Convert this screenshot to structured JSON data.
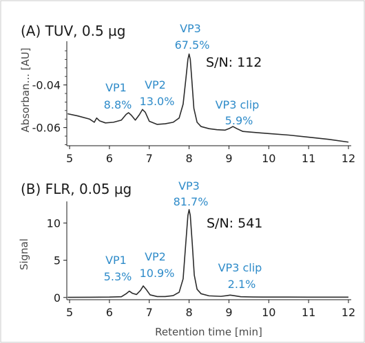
{
  "chart_data": [
    {
      "type": "line",
      "panel": "A",
      "title": "(A) TUV, 0.5 µg",
      "xlabel": "",
      "ylabel": "Absorban... [AU]",
      "xlim": [
        4.93,
        12.07
      ],
      "ylim": [
        -0.0685,
        -0.0195
      ],
      "x_ticks": [
        5,
        6,
        7,
        8,
        9,
        10,
        11,
        12
      ],
      "y_ticks": [
        -0.04,
        -0.06
      ],
      "y_tick_labels": [
        "-0.04",
        "-0.06"
      ],
      "x": [
        4.95,
        5.2,
        5.5,
        5.62,
        5.68,
        5.75,
        5.9,
        6.1,
        6.3,
        6.42,
        6.48,
        6.55,
        6.65,
        6.75,
        6.83,
        6.9,
        7.0,
        7.2,
        7.4,
        7.6,
        7.75,
        7.85,
        7.92,
        7.97,
        8.0,
        8.03,
        8.07,
        8.12,
        8.2,
        8.3,
        8.5,
        8.7,
        8.9,
        9.0,
        9.1,
        9.2,
        9.35,
        9.6,
        10.0,
        10.5,
        11.0,
        11.5,
        12.0
      ],
      "series": [
        {
          "values": [
            -0.0535,
            -0.0545,
            -0.056,
            -0.0575,
            -0.0555,
            -0.0568,
            -0.0578,
            -0.0575,
            -0.0565,
            -0.0538,
            -0.053,
            -0.0542,
            -0.0565,
            -0.054,
            -0.0515,
            -0.0528,
            -0.057,
            -0.0585,
            -0.0582,
            -0.0575,
            -0.0555,
            -0.049,
            -0.037,
            -0.028,
            -0.0255,
            -0.028,
            -0.038,
            -0.051,
            -0.0575,
            -0.0595,
            -0.0605,
            -0.061,
            -0.0612,
            -0.0605,
            -0.0595,
            -0.0605,
            -0.0618,
            -0.0622,
            -0.0628,
            -0.0635,
            -0.0645,
            -0.0655,
            -0.0668
          ]
        }
      ],
      "annotations": [
        {
          "lines": [
            "VP1",
            "8.8%"
          ],
          "color": "#2E8BC9"
        },
        {
          "lines": [
            "VP2",
            "13.0%"
          ],
          "color": "#2E8BC9"
        },
        {
          "lines": [
            "VP3",
            "67.5%"
          ],
          "color": "#2E8BC9"
        },
        {
          "lines": [
            "VP3 clip",
            "5.9%"
          ],
          "color": "#2E8BC9"
        },
        {
          "lines": [
            "S/N: 112"
          ],
          "color": "#111111"
        }
      ]
    },
    {
      "type": "line",
      "panel": "B",
      "title": "(B) FLR, 0.05 µg",
      "xlabel": "Retention time [min]",
      "ylabel": "Signal",
      "xlim": [
        4.93,
        12.07
      ],
      "ylim": [
        -0.3,
        12.9
      ],
      "x_ticks": [
        5,
        6,
        7,
        8,
        9,
        10,
        11,
        12
      ],
      "y_ticks": [
        0,
        5,
        10
      ],
      "y_tick_labels": [
        "0",
        "5",
        "10"
      ],
      "x": [
        4.95,
        5.5,
        6.0,
        6.3,
        6.42,
        6.5,
        6.58,
        6.68,
        6.78,
        6.85,
        6.92,
        7.02,
        7.2,
        7.4,
        7.6,
        7.75,
        7.85,
        7.92,
        7.97,
        8.0,
        8.03,
        8.08,
        8.13,
        8.2,
        8.3,
        8.5,
        8.8,
        8.95,
        9.03,
        9.12,
        9.3,
        9.6,
        10.0,
        10.5,
        11.0,
        11.5,
        12.0
      ],
      "series": [
        {
          "values": [
            0.02,
            0.03,
            0.05,
            0.1,
            0.5,
            0.85,
            0.55,
            0.4,
            0.95,
            1.55,
            1.1,
            0.35,
            0.12,
            0.12,
            0.25,
            0.7,
            2.5,
            7.5,
            11.0,
            11.8,
            11.0,
            7.2,
            3.0,
            1.1,
            0.5,
            0.22,
            0.15,
            0.25,
            0.32,
            0.25,
            0.1,
            0.06,
            0.05,
            0.05,
            0.04,
            0.04,
            0.04
          ]
        }
      ],
      "annotations": [
        {
          "lines": [
            "VP1",
            "5.3%"
          ],
          "color": "#2E8BC9"
        },
        {
          "lines": [
            "VP2",
            "10.9%"
          ],
          "color": "#2E8BC9"
        },
        {
          "lines": [
            "VP3",
            "81.7%"
          ],
          "color": "#2E8BC9"
        },
        {
          "lines": [
            "VP3 clip",
            "2.1%"
          ],
          "color": "#2E8BC9"
        },
        {
          "lines": [
            "S/N: 541"
          ],
          "color": "#111111"
        }
      ]
    }
  ]
}
